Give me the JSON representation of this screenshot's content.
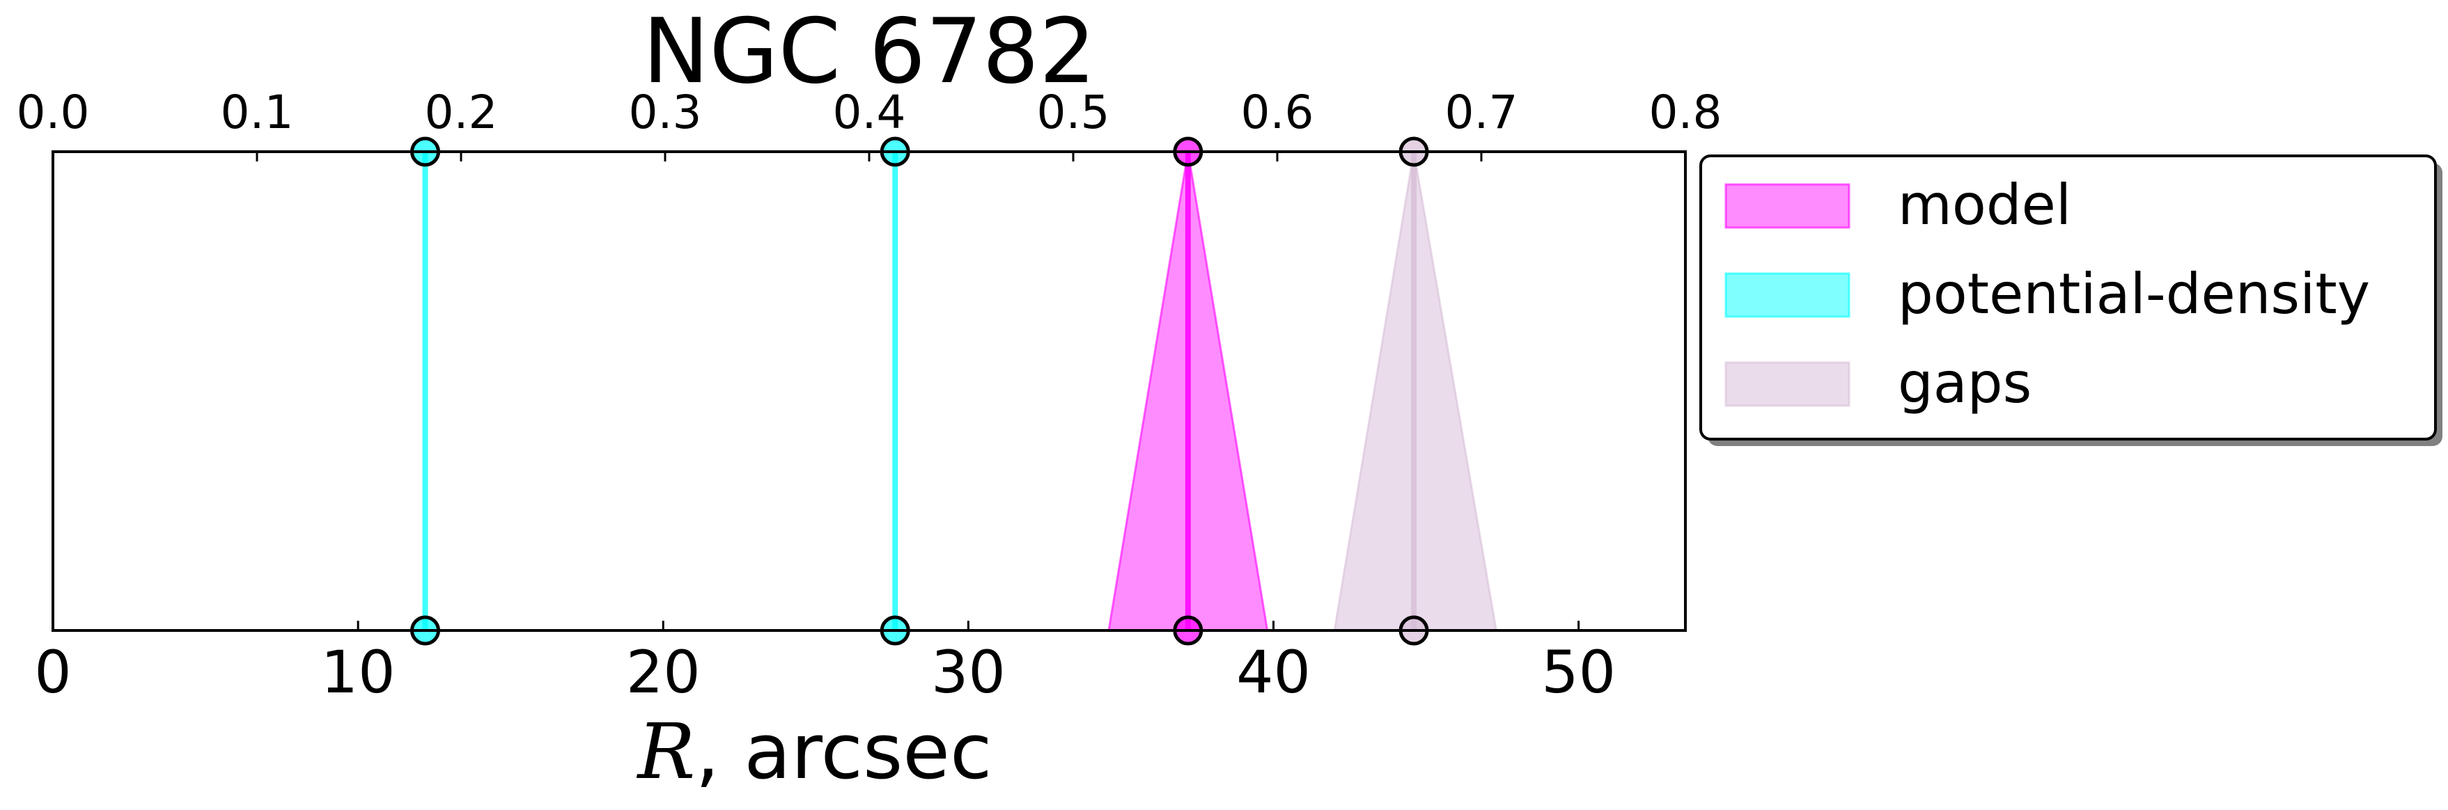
{
  "chart_data": {
    "type": "area",
    "title": "NGC 6782",
    "xlabel": "R, arcsec",
    "xlabel_symbol": "R",
    "xlabel_unit": ", arcsec",
    "xlim": [
      0,
      53.5
    ],
    "x_ticks": [
      0,
      10,
      20,
      30,
      40,
      50
    ],
    "x_tick_labels": [
      "0",
      "10",
      "20",
      "30",
      "40",
      "50"
    ],
    "secondary_xlim": [
      0.0,
      0.8
    ],
    "secondary_ticks": [
      0.0,
      0.1,
      0.2,
      0.3,
      0.4,
      0.5,
      0.6,
      0.7,
      0.8
    ],
    "secondary_tick_labels": [
      "0.0",
      "0.1",
      "0.2",
      "0.3",
      "0.4",
      "0.5",
      "0.6",
      "0.7",
      "0.8"
    ],
    "grid": false,
    "legend_position": "outside-right",
    "series": [
      {
        "name": "model",
        "color": "#ff00ff",
        "alpha": 0.45,
        "items": [
          {
            "center": 37.2,
            "low": 34.6,
            "high": 39.8
          }
        ]
      },
      {
        "name": "potential-density",
        "color": "#00ffff",
        "alpha": 0.5,
        "items": [
          {
            "center": 12.2,
            "low": 12.2,
            "high": 12.2
          },
          {
            "center": 27.6,
            "low": 27.6,
            "high": 27.6
          }
        ]
      },
      {
        "name": "gaps",
        "color": "#d8bfd8",
        "alpha": 0.55,
        "items": [
          {
            "center": 44.6,
            "low": 42.0,
            "high": 47.3
          }
        ]
      }
    ]
  }
}
